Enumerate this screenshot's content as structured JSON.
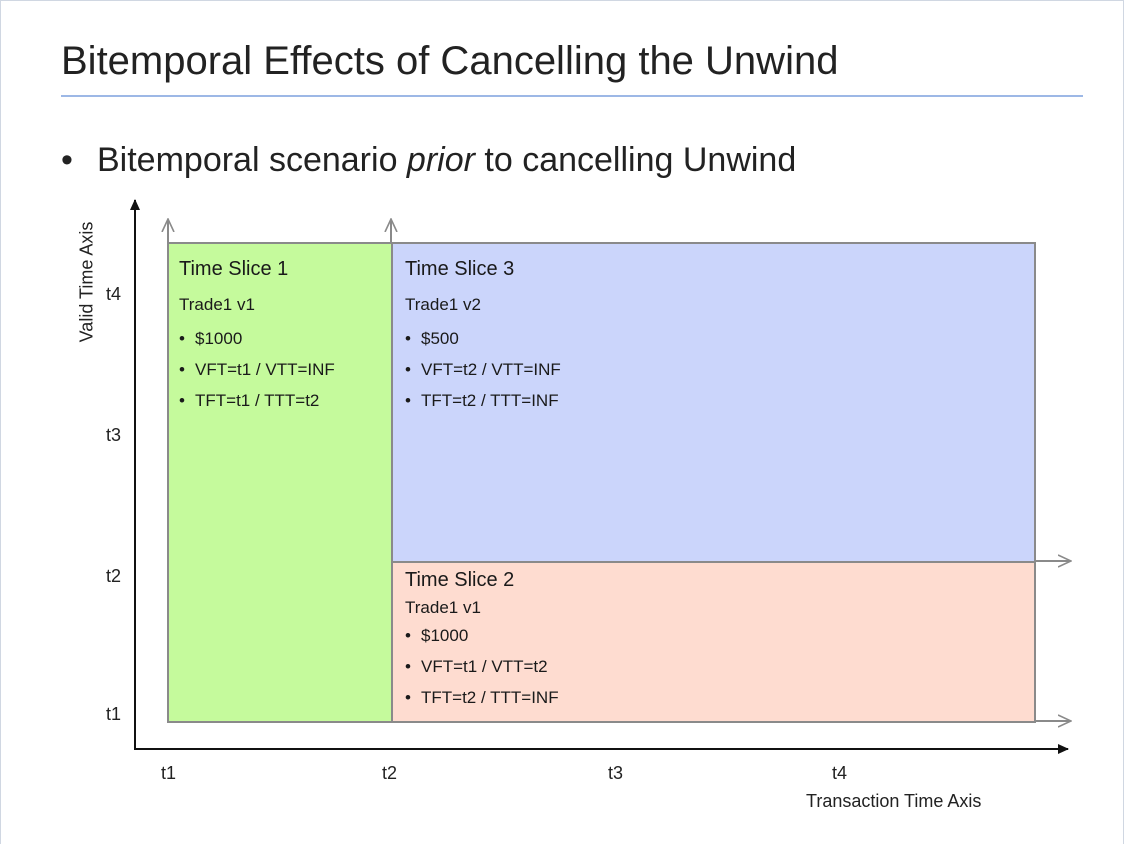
{
  "slide": {
    "title": "Bitemporal Effects of Cancelling the Unwind",
    "bullet_prefix": "Bitemporal scenario ",
    "bullet_emphasis": "prior",
    "bullet_suffix": "  to cancelling Unwind"
  },
  "diagram": {
    "y_axis_label": "Valid Time Axis",
    "x_axis_label": "Transaction Time Axis",
    "y_ticks": [
      "t1",
      "t2",
      "t3",
      "t4"
    ],
    "x_ticks": [
      "t1",
      "t2",
      "t3",
      "t4"
    ],
    "colors": {
      "slice1": "#c5fa9c",
      "slice2": "#fedcd0",
      "slice3": "#cbd5fb",
      "border": "#8a8a8a",
      "title_rule": "#9db8e6"
    },
    "slices": [
      {
        "name": "Time Slice 1",
        "trade": "Trade1 v1",
        "items": [
          "$1000",
          "VFT=t1 / VTT=INF",
          "TFT=t1 / TTT=t2"
        ]
      },
      {
        "name": "Time Slice 3",
        "trade": "Trade1 v2",
        "items": [
          "$500",
          "VFT=t2 / VTT=INF",
          "TFT=t2 / TTT=INF"
        ]
      },
      {
        "name": "Time Slice 2",
        "trade": "Trade1 v1",
        "items": [
          "$1000",
          "VFT=t1 / VTT=t2",
          "TFT=t2 / TTT=INF"
        ]
      }
    ]
  }
}
